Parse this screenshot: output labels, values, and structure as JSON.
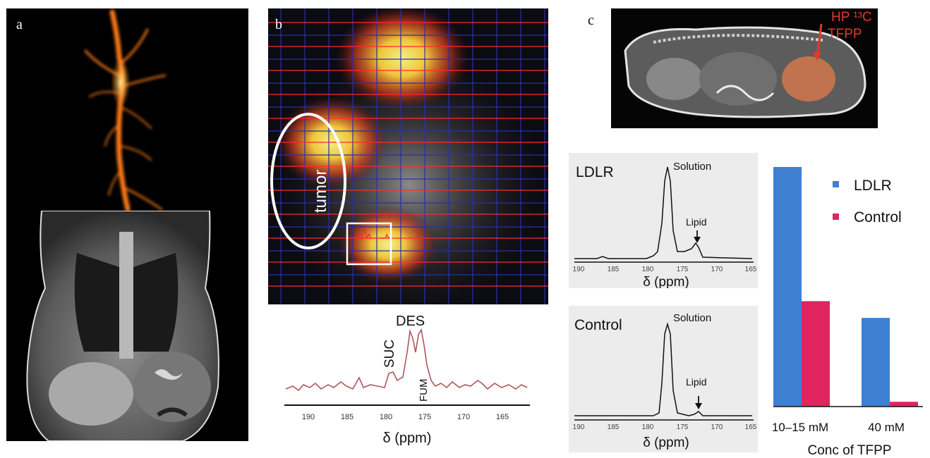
{
  "figure": {
    "panel_a": {
      "letter": "a"
    },
    "panel_b": {
      "letter": "b",
      "roi_label": "tumor",
      "spectrum": {
        "peaks": {
          "des": "DES",
          "suc": "SUC",
          "fum": "FUM"
        },
        "ticks": [
          "190",
          "185",
          "180",
          "175",
          "170",
          "165"
        ],
        "axis_label": "δ (ppm)"
      }
    },
    "panel_c": {
      "letter": "c",
      "annotation_line1": "HP ¹³C",
      "annotation_line2": "TFPP",
      "spectra": [
        {
          "name": "LDLR",
          "solution_label": "Solution",
          "lipid_label": "Lipid",
          "ticks": [
            "190",
            "185",
            "180",
            "175",
            "170",
            "165"
          ],
          "axis_label": "δ (ppm)"
        },
        {
          "name": "Control",
          "solution_label": "Solution",
          "lipid_label": "Lipid",
          "ticks": [
            "190",
            "185",
            "180",
            "175",
            "170",
            "165"
          ],
          "axis_label": "δ (ppm)"
        }
      ],
      "legend": {
        "ldlr": "LDLR",
        "control": "Control"
      },
      "xlabel": "Conc of TFPP"
    },
    "colors": {
      "ldlr": "#3f7fd1",
      "control": "#e0245e",
      "roi": "#ffffff",
      "annotation": "#e03a2a"
    }
  },
  "chart_data": {
    "type": "bar",
    "categories": [
      "10–15 mM",
      "40 mM"
    ],
    "series": [
      {
        "name": "LDLR",
        "values": [
          1.0,
          0.37
        ]
      },
      {
        "name": "Control",
        "values": [
          0.44,
          0.02
        ]
      }
    ],
    "xlabel": "Conc of TFPP",
    "ylabel": "",
    "ylim": [
      0,
      1.0
    ],
    "legend": "top-right",
    "grid": false
  }
}
